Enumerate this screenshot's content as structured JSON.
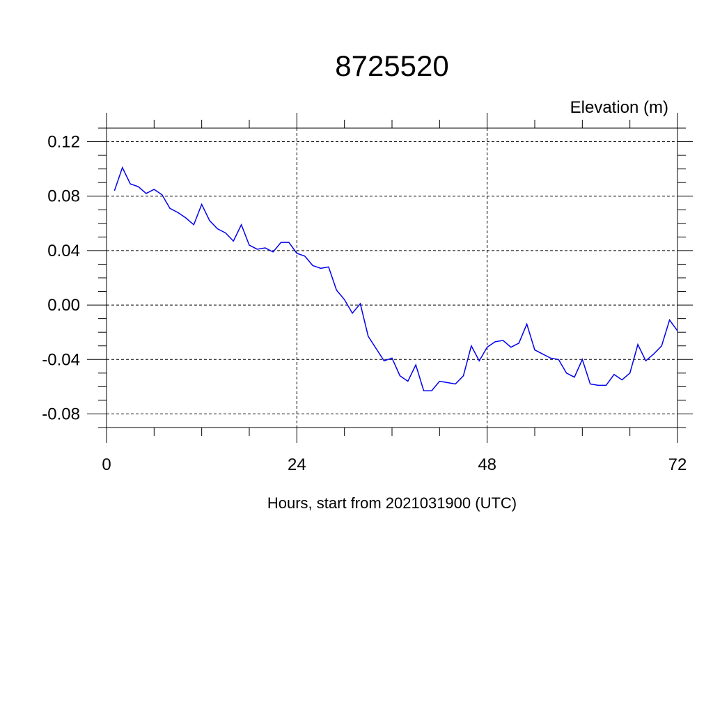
{
  "chart_data": {
    "type": "line",
    "title": "8725520",
    "ylabel": "Elevation (m)",
    "xlabel": "Hours, start from 2021031900 (UTC)",
    "xlim": [
      0,
      72
    ],
    "ylim": [
      -0.09,
      0.13
    ],
    "x_ticks": [
      0,
      24,
      48,
      72
    ],
    "x_tick_labels": [
      "0",
      "24",
      "48",
      "72"
    ],
    "y_ticks": [
      -0.08,
      -0.04,
      0.0,
      0.04,
      0.08,
      0.12
    ],
    "y_tick_labels": [
      "-0.08",
      "-0.04",
      "0.00",
      "0.04",
      "0.08",
      "0.12"
    ],
    "grid": true,
    "series": [
      {
        "color": "#0000ee",
        "x": [
          1,
          2,
          3,
          4,
          5,
          6,
          7,
          8,
          9,
          10,
          11,
          12,
          13,
          14,
          15,
          16,
          17,
          18,
          19,
          20,
          21,
          22,
          23,
          24,
          25,
          26,
          27,
          28,
          29,
          30,
          31,
          32,
          33,
          34,
          35,
          36,
          37,
          38,
          39,
          40,
          41,
          42,
          43,
          44,
          45,
          46,
          47,
          48,
          49,
          50,
          51,
          52,
          53,
          54,
          55,
          56,
          57,
          58,
          59,
          60,
          61,
          62,
          63,
          64,
          65,
          66,
          67,
          68,
          69,
          70,
          71,
          72
        ],
        "y": [
          0.084,
          0.101,
          0.089,
          0.087,
          0.082,
          0.085,
          0.081,
          0.071,
          0.068,
          0.064,
          0.059,
          0.074,
          0.062,
          0.056,
          0.053,
          0.047,
          0.059,
          0.044,
          0.041,
          0.042,
          0.039,
          0.046,
          0.046,
          0.038,
          0.036,
          0.029,
          0.027,
          0.028,
          0.011,
          0.004,
          -0.006,
          0.001,
          -0.023,
          -0.032,
          -0.041,
          -0.039,
          -0.052,
          -0.056,
          -0.044,
          -0.063,
          -0.063,
          -0.056,
          -0.057,
          -0.058,
          -0.052,
          -0.03,
          -0.041,
          -0.031,
          -0.027,
          -0.026,
          -0.031,
          -0.028,
          -0.014,
          -0.033,
          -0.036,
          -0.039,
          -0.04,
          -0.05,
          -0.053,
          -0.04,
          -0.058,
          -0.059,
          -0.059,
          -0.051,
          -0.055,
          -0.05,
          -0.029,
          -0.041,
          -0.036,
          -0.03,
          -0.011,
          -0.019
        ]
      }
    ]
  }
}
